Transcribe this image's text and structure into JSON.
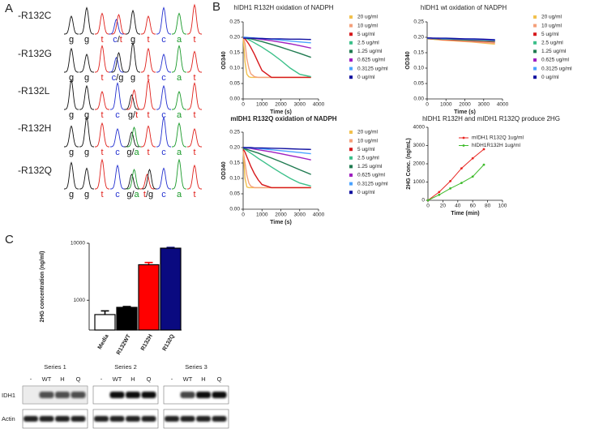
{
  "panel_labels": [
    "A",
    "B",
    "C"
  ],
  "sequencing": {
    "rows": [
      {
        "label": "-R132C",
        "bases": [
          "g",
          "g",
          "t",
          "c/t",
          "g",
          "t",
          "c",
          "a",
          "t"
        ]
      },
      {
        "label": "-R132G",
        "bases": [
          "g",
          "g",
          "t",
          "c/g",
          "g",
          "t",
          "c",
          "a",
          "t"
        ]
      },
      {
        "label": "-R132L",
        "bases": [
          "g",
          "g",
          "t",
          "c",
          "g/t",
          "t",
          "c",
          "a",
          "t"
        ]
      },
      {
        "label": "-R132H",
        "bases": [
          "g",
          "g",
          "t",
          "c",
          "g/a",
          "t",
          "c",
          "a",
          "t"
        ]
      },
      {
        "label": "-R132Q",
        "bases": [
          "g",
          "g",
          "t",
          "c",
          "g/a",
          "t/g",
          "c",
          "a",
          "t"
        ]
      }
    ]
  },
  "chart_data": [
    {
      "type": "line",
      "title": "hIDH1 R132H oxidation of NADPH",
      "xlabel": "Time (s)",
      "ylabel": "OD340",
      "x": [
        0,
        100,
        200,
        300,
        400,
        600,
        800,
        1000,
        1500,
        2000,
        2500,
        3000,
        3600
      ],
      "xlim": [
        0,
        4000
      ],
      "xticks": [
        0,
        1000,
        2000,
        3000,
        4000
      ],
      "ylim": [
        0,
        0.25
      ],
      "yticks": [
        {
          "value": 0,
          "label": "0.00"
        },
        0.05,
        {
          "value": 0.1,
          "label": "0.10"
        },
        0.15,
        {
          "value": 0.2,
          "label": "0.20"
        },
        0.25
      ],
      "series": [
        {
          "name": "20 ug/ml",
          "color": "#f2c14e",
          "values": [
            0.2,
            0.12,
            0.08,
            0.072,
            0.07,
            0.07,
            0.07,
            0.07,
            0.07,
            0.07,
            0.07,
            0.07,
            0.07
          ]
        },
        {
          "name": "10 ug/ml",
          "color": "#f4a07a",
          "values": [
            0.2,
            0.18,
            0.13,
            0.1,
            0.082,
            0.072,
            0.07,
            0.07,
            0.07,
            0.07,
            0.07,
            0.07,
            0.07
          ]
        },
        {
          "name": "5 ug/ml",
          "color": "#d7191c",
          "values": [
            0.2,
            0.195,
            0.187,
            0.178,
            0.168,
            0.145,
            0.118,
            0.092,
            0.07,
            0.07,
            0.07,
            0.07,
            0.07
          ]
        },
        {
          "name": "2.5 ug/ml",
          "color": "#3cc08a",
          "values": [
            0.2,
            0.198,
            0.195,
            0.192,
            0.189,
            0.182,
            0.175,
            0.168,
            0.148,
            0.125,
            0.1,
            0.08,
            0.072
          ]
        },
        {
          "name": "1.25 ug/ml",
          "color": "#1f7a50",
          "values": [
            0.2,
            0.199,
            0.198,
            0.196,
            0.195,
            0.192,
            0.189,
            0.186,
            0.177,
            0.168,
            0.158,
            0.148,
            0.135
          ]
        },
        {
          "name": "0.625 ug/ml",
          "color": "#a020c0",
          "values": [
            0.2,
            0.2,
            0.199,
            0.199,
            0.198,
            0.196,
            0.195,
            0.193,
            0.189,
            0.184,
            0.179,
            0.173,
            0.165
          ]
        },
        {
          "name": "0.3125 ug/ml",
          "color": "#4aa3ff",
          "values": [
            0.2,
            0.2,
            0.2,
            0.199,
            0.199,
            0.198,
            0.197,
            0.196,
            0.194,
            0.191,
            0.188,
            0.185,
            0.182
          ]
        },
        {
          "name": "0 ug/ml",
          "color": "#1010a0",
          "values": [
            0.197,
            0.197,
            0.197,
            0.197,
            0.197,
            0.197,
            0.196,
            0.196,
            0.195,
            0.195,
            0.194,
            0.194,
            0.193
          ]
        }
      ]
    },
    {
      "type": "line",
      "title": "hIDH1 wt oxidation of NADPH",
      "xlabel": "Time (s)",
      "ylabel": "OD340",
      "x": [
        0,
        100,
        200,
        300,
        400,
        600,
        800,
        1000,
        1500,
        2000,
        2500,
        3000,
        3600
      ],
      "xlim": [
        0,
        4000
      ],
      "xticks": [
        0,
        1000,
        2000,
        3000,
        4000
      ],
      "ylim": [
        0,
        0.25
      ],
      "yticks": [
        {
          "value": 0,
          "label": "0.00"
        },
        0.05,
        {
          "value": 0.1,
          "label": "0.10"
        },
        0.15,
        {
          "value": 0.2,
          "label": "0.20"
        },
        0.25
      ],
      "series": [
        {
          "name": "20 ug/ml",
          "color": "#f2c14e",
          "values": [
            0.195,
            0.195,
            0.194,
            0.194,
            0.193,
            0.192,
            0.191,
            0.19,
            0.188,
            0.186,
            0.184,
            0.181,
            0.178
          ]
        },
        {
          "name": "10 ug/ml",
          "color": "#f4a07a",
          "values": [
            0.195,
            0.195,
            0.194,
            0.194,
            0.194,
            0.193,
            0.192,
            0.191,
            0.189,
            0.187,
            0.185,
            0.183,
            0.181
          ]
        },
        {
          "name": "5 ug/ml",
          "color": "#d7191c",
          "values": [
            0.196,
            0.196,
            0.195,
            0.195,
            0.195,
            0.194,
            0.193,
            0.193,
            0.191,
            0.19,
            0.188,
            0.187,
            0.185
          ]
        },
        {
          "name": "2.5 ug/ml",
          "color": "#3cc08a",
          "values": [
            0.196,
            0.196,
            0.196,
            0.196,
            0.195,
            0.195,
            0.194,
            0.194,
            0.193,
            0.191,
            0.19,
            0.189,
            0.187
          ]
        },
        {
          "name": "1.25 ug/ml",
          "color": "#1f7a50",
          "values": [
            0.197,
            0.197,
            0.197,
            0.196,
            0.196,
            0.196,
            0.195,
            0.195,
            0.194,
            0.193,
            0.192,
            0.191,
            0.189
          ]
        },
        {
          "name": "0.625 ug/ml",
          "color": "#a020c0",
          "values": [
            0.197,
            0.197,
            0.197,
            0.197,
            0.197,
            0.196,
            0.196,
            0.196,
            0.195,
            0.194,
            0.193,
            0.192,
            0.19
          ]
        },
        {
          "name": "0.3125 ug/ml",
          "color": "#4aa3ff",
          "values": [
            0.197,
            0.197,
            0.197,
            0.197,
            0.197,
            0.197,
            0.196,
            0.196,
            0.195,
            0.195,
            0.194,
            0.193,
            0.191
          ]
        },
        {
          "name": "0 ug/ml",
          "color": "#1010a0",
          "values": [
            0.198,
            0.198,
            0.198,
            0.197,
            0.197,
            0.197,
            0.197,
            0.197,
            0.196,
            0.195,
            0.195,
            0.194,
            0.192
          ]
        }
      ]
    },
    {
      "type": "line",
      "title": "mIDH1 R132Q oxidation of NADPH",
      "xlabel": "Time (s)",
      "ylabel": "OD340",
      "x": [
        0,
        100,
        200,
        300,
        400,
        600,
        800,
        1000,
        1500,
        2000,
        2500,
        3000,
        3600
      ],
      "xlim": [
        0,
        4000
      ],
      "xticks": [
        0,
        1000,
        2000,
        3000,
        4000
      ],
      "ylim": [
        0,
        0.25
      ],
      "yticks": [
        {
          "value": 0,
          "label": "0.00"
        },
        0.05,
        {
          "value": 0.1,
          "label": "0.10"
        },
        0.15,
        {
          "value": 0.2,
          "label": "0.20"
        },
        0.25
      ],
      "series": [
        {
          "name": "20 ug/ml",
          "color": "#f2c14e",
          "values": [
            0.19,
            0.1,
            0.072,
            0.07,
            0.07,
            0.07,
            0.07,
            0.07,
            0.07,
            0.07,
            0.07,
            0.07,
            0.07
          ]
        },
        {
          "name": "10 ug/ml",
          "color": "#f4a07a",
          "values": [
            0.19,
            0.15,
            0.11,
            0.085,
            0.075,
            0.07,
            0.07,
            0.07,
            0.07,
            0.07,
            0.07,
            0.07,
            0.07
          ]
        },
        {
          "name": "5 ug/ml",
          "color": "#d7191c",
          "values": [
            0.195,
            0.185,
            0.17,
            0.155,
            0.14,
            0.115,
            0.095,
            0.08,
            0.07,
            0.07,
            0.07,
            0.07,
            0.07
          ]
        },
        {
          "name": "2.5 ug/ml",
          "color": "#3cc08a",
          "values": [
            0.197,
            0.194,
            0.19,
            0.186,
            0.182,
            0.174,
            0.165,
            0.157,
            0.137,
            0.118,
            0.1,
            0.085,
            0.075
          ]
        },
        {
          "name": "1.25 ug/ml",
          "color": "#1f7a50",
          "values": [
            0.198,
            0.196,
            0.194,
            0.192,
            0.19,
            0.186,
            0.182,
            0.177,
            0.166,
            0.154,
            0.141,
            0.128,
            0.113
          ]
        },
        {
          "name": "0.625 ug/ml",
          "color": "#a020c0",
          "values": [
            0.2,
            0.199,
            0.198,
            0.198,
            0.197,
            0.195,
            0.193,
            0.191,
            0.186,
            0.18,
            0.174,
            0.168,
            0.16
          ]
        },
        {
          "name": "0.3125 ug/ml",
          "color": "#4aa3ff",
          "values": [
            0.2,
            0.2,
            0.199,
            0.199,
            0.199,
            0.198,
            0.197,
            0.196,
            0.193,
            0.19,
            0.187,
            0.184,
            0.18
          ]
        },
        {
          "name": "0 ug/ml",
          "color": "#1010a0",
          "values": [
            0.2,
            0.2,
            0.2,
            0.2,
            0.2,
            0.199,
            0.199,
            0.199,
            0.198,
            0.197,
            0.196,
            0.195,
            0.194
          ]
        }
      ]
    },
    {
      "type": "line",
      "title": "hIDH1 R132H and mIDH1 R132Q produce 2HG",
      "xlabel": "Time (min)",
      "ylabel": "2HG Conc. (ng/mL)",
      "x": [
        0,
        15,
        30,
        45,
        60,
        75
      ],
      "xlim": [
        0,
        100
      ],
      "xticks": [
        0,
        20,
        40,
        60,
        80,
        100
      ],
      "ylim": [
        0,
        4000
      ],
      "yticks": [
        0,
        1000,
        2000,
        3000,
        4000
      ],
      "series": [
        {
          "name": "mIDH1 R132Q  1ug/ml",
          "color": "#e8231f",
          "values": [
            0,
            450,
            1050,
            1750,
            2300,
            2800
          ]
        },
        {
          "name": "hIDH1R132H  1ug/ml",
          "color": "#3dbb2a",
          "values": [
            0,
            300,
            650,
            950,
            1300,
            1950
          ]
        }
      ]
    },
    {
      "type": "bar",
      "ylabel": "2HG concentration (ng/ml)",
      "log_scale": true,
      "categories": [
        "Media",
        "R132WT",
        "R132H",
        "R132Q"
      ],
      "values": [
        560,
        750,
        4200,
        8200
      ],
      "errors": [
        90,
        25,
        400,
        250
      ],
      "colors": [
        "#ffffff",
        "#000000",
        "#ff0000",
        "#0a0a80"
      ],
      "ylim": [
        300,
        10000
      ],
      "yticks": [
        1000,
        10000
      ]
    }
  ],
  "western_blot": {
    "series": [
      "Series 1",
      "Series 2",
      "Series 3"
    ],
    "lanes": [
      "-",
      "WT",
      "H",
      "Q"
    ],
    "rows": [
      "IDH1",
      "Actin"
    ]
  }
}
